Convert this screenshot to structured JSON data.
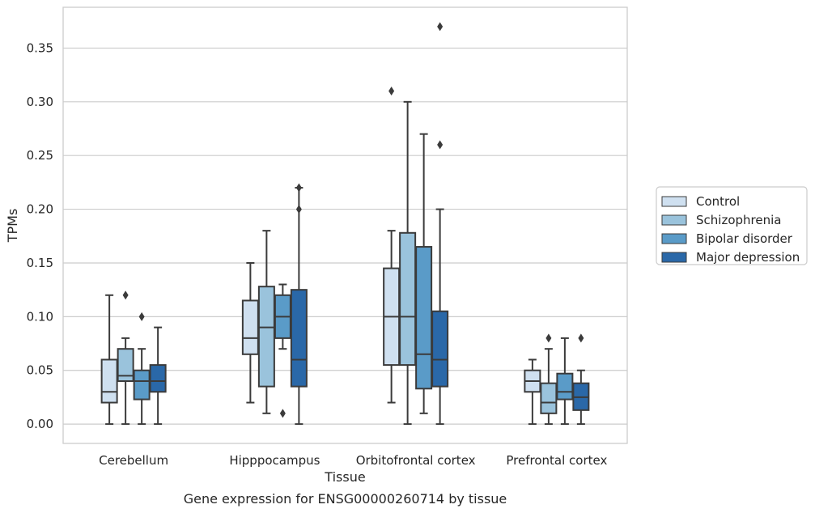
{
  "chart_data": {
    "type": "box",
    "caption": "Gene expression for ENSG00000260714 by tissue",
    "xlabel": "Tissue",
    "ylabel": "TPMs",
    "ylim": [
      -0.018,
      0.388
    ],
    "yticks": [
      0.0,
      0.05,
      0.1,
      0.15,
      0.2,
      0.25,
      0.3,
      0.35
    ],
    "ytick_labels": [
      "0.00",
      "0.05",
      "0.10",
      "0.15",
      "0.20",
      "0.25",
      "0.30",
      "0.35"
    ],
    "grid": true,
    "legend_position": "outside-right",
    "categories": [
      "Cerebellum",
      "Hipppocampus",
      "Orbitofrontal cortex",
      "Prefrontal cortex"
    ],
    "series": [
      {
        "name": "Control",
        "color": "#cfe0f0",
        "boxes": [
          {
            "whislo": 0.0,
            "q1": 0.02,
            "med": 0.03,
            "q3": 0.06,
            "whishi": 0.12,
            "fliers": []
          },
          {
            "whislo": 0.02,
            "q1": 0.065,
            "med": 0.08,
            "q3": 0.115,
            "whishi": 0.15,
            "fliers": []
          },
          {
            "whislo": 0.02,
            "q1": 0.055,
            "med": 0.1,
            "q3": 0.145,
            "whishi": 0.18,
            "fliers": [
              0.31
            ]
          },
          {
            "whislo": 0.0,
            "q1": 0.03,
            "med": 0.04,
            "q3": 0.05,
            "whishi": 0.06,
            "fliers": []
          }
        ]
      },
      {
        "name": "Schizophrenia",
        "color": "#9ac3dc",
        "boxes": [
          {
            "whislo": 0.0,
            "q1": 0.04,
            "med": 0.045,
            "q3": 0.07,
            "whishi": 0.08,
            "fliers": [
              0.12
            ]
          },
          {
            "whislo": 0.01,
            "q1": 0.035,
            "med": 0.09,
            "q3": 0.128,
            "whishi": 0.18,
            "fliers": []
          },
          {
            "whislo": 0.0,
            "q1": 0.055,
            "med": 0.1,
            "q3": 0.178,
            "whishi": 0.3,
            "fliers": []
          },
          {
            "whislo": 0.0,
            "q1": 0.01,
            "med": 0.02,
            "q3": 0.038,
            "whishi": 0.07,
            "fliers": [
              0.08
            ]
          }
        ]
      },
      {
        "name": "Bipolar disorder",
        "color": "#5a9bc8",
        "boxes": [
          {
            "whislo": 0.0,
            "q1": 0.023,
            "med": 0.04,
            "q3": 0.05,
            "whishi": 0.07,
            "fliers": [
              0.1
            ]
          },
          {
            "whislo": 0.07,
            "q1": 0.08,
            "med": 0.1,
            "q3": 0.12,
            "whishi": 0.13,
            "fliers": [
              0.01
            ]
          },
          {
            "whislo": 0.01,
            "q1": 0.033,
            "med": 0.065,
            "q3": 0.165,
            "whishi": 0.27,
            "fliers": []
          },
          {
            "whislo": 0.0,
            "q1": 0.023,
            "med": 0.03,
            "q3": 0.047,
            "whishi": 0.08,
            "fliers": []
          }
        ]
      },
      {
        "name": "Major depression",
        "color": "#2a68a8",
        "boxes": [
          {
            "whislo": 0.0,
            "q1": 0.03,
            "med": 0.04,
            "q3": 0.055,
            "whishi": 0.09,
            "fliers": []
          },
          {
            "whislo": 0.0,
            "q1": 0.035,
            "med": 0.06,
            "q3": 0.125,
            "whishi": 0.22,
            "fliers": [
              0.2,
              0.22
            ]
          },
          {
            "whislo": 0.0,
            "q1": 0.035,
            "med": 0.06,
            "q3": 0.105,
            "whishi": 0.2,
            "fliers": [
              0.26,
              0.37
            ]
          },
          {
            "whislo": 0.0,
            "q1": 0.013,
            "med": 0.025,
            "q3": 0.038,
            "whishi": 0.05,
            "fliers": [
              0.08
            ]
          }
        ]
      }
    ]
  }
}
